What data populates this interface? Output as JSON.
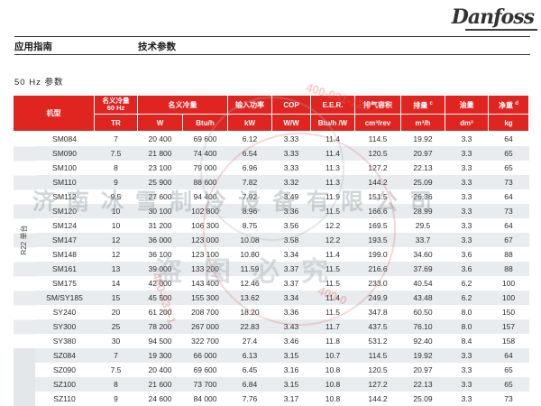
{
  "page": {
    "brand": "Danfoss",
    "nav_left": "应用指南",
    "nav_right": "技术参数",
    "section_title": "50 Hz 参数"
  },
  "table": {
    "group_label": "R22 单台",
    "header": {
      "model": "机型",
      "nominal60_l1": "名义冷量",
      "nominal60_l2": "60 Hz",
      "nominal": "名义冷量",
      "input_power": "输入功率",
      "cop": "COP",
      "eer": "E.E.R.",
      "displacement_vol": "排气容积",
      "displacement": "排量",
      "displacement_sup": "c",
      "oil": "油量",
      "net_weight": "净重",
      "net_weight_sup": "d"
    },
    "units": {
      "tr": "TR",
      "w": "W",
      "btuh": "Btu/h",
      "kw": "kW",
      "ww": "W/W",
      "btuhw": "Btu/h /W",
      "cm3rev": "cm³/rev",
      "m3h": "m³/h",
      "dm3": "dm³",
      "kg": "kg"
    },
    "rows": [
      [
        "SM084",
        "7",
        "20 400",
        "69 600",
        "6.12",
        "3.33",
        "11.4",
        "114.5",
        "19.92",
        "3.3",
        "64"
      ],
      [
        "SM090",
        "7.5",
        "21 800",
        "74 400",
        "6.54",
        "3.33",
        "11.4",
        "120.5",
        "20.97",
        "3.3",
        "65"
      ],
      [
        "SM100",
        "8",
        "23 100",
        "79 000",
        "6.96",
        "3.33",
        "11.3",
        "127.2",
        "22.13",
        "3.3",
        "65"
      ],
      [
        "SM110",
        "9",
        "25 900",
        "88 600",
        "7.82",
        "3.32",
        "11.3",
        "144.2",
        "25.09",
        "3.3",
        "73"
      ],
      [
        "SM112",
        "9.5",
        "27 600",
        "94 400",
        "7.92",
        "3.49",
        "11.9",
        "151.5",
        "26.36",
        "3.3",
        "64"
      ],
      [
        "SM120",
        "10",
        "30 100",
        "102 800",
        "8.96",
        "3.36",
        "11.5",
        "166.6",
        "28.99",
        "3.3",
        "73"
      ],
      [
        "SM124",
        "10",
        "31 200",
        "106 300",
        "8.75",
        "3.56",
        "12.2",
        "169.5",
        "29.5",
        "3.3",
        "64"
      ],
      [
        "SM147",
        "12",
        "36 000",
        "123 000",
        "10.08",
        "3.58",
        "12.2",
        "193.5",
        "33.7",
        "3.3",
        "67"
      ],
      [
        "SM148",
        "12",
        "36 100",
        "123 100",
        "10.80",
        "3.34",
        "11.4",
        "199.0",
        "34.60",
        "3.6",
        "88"
      ],
      [
        "SM161",
        "13",
        "39 000",
        "133 200",
        "11.59",
        "3.37",
        "11.5",
        "216.6",
        "37.69",
        "3.6",
        "88"
      ],
      [
        "SM175",
        "14",
        "42 000",
        "143 400",
        "12.46",
        "3.37",
        "11.5",
        "233.0",
        "40.54",
        "6.2",
        "100"
      ],
      [
        "SM/SY185",
        "15",
        "45 500",
        "155 300",
        "13.62",
        "3.34",
        "11.4",
        "249.9",
        "43.48",
        "6.2",
        "100"
      ],
      [
        "SY240",
        "20",
        "61 200",
        "208 700",
        "18.20",
        "3.36",
        "11.5",
        "347.8",
        "60.50",
        "8.0",
        "150"
      ],
      [
        "SY300",
        "25",
        "78 200",
        "267 000",
        "22.83",
        "3.43",
        "11.7",
        "437.5",
        "76.10",
        "8.0",
        "157"
      ],
      [
        "SY380",
        "30",
        "94 500",
        "322 700",
        "27.4",
        "3.46",
        "11.8",
        "531.2",
        "92.40",
        "8.4",
        "158"
      ],
      [
        "SZ084",
        "7",
        "19 300",
        "66 000",
        "6.13",
        "3.15",
        "10.7",
        "114.5",
        "19.92",
        "3.3",
        "64"
      ],
      [
        "SZ090",
        "7.5",
        "20 400",
        "69 600",
        "6.45",
        "3.16",
        "10.8",
        "120.5",
        "20.97",
        "3.3",
        "65"
      ],
      [
        "SZ100",
        "8",
        "21 600",
        "73 700",
        "6.84",
        "3.15",
        "10.8",
        "127.2",
        "22.13",
        "3.3",
        "65"
      ],
      [
        "SZ110",
        "9",
        "24 600",
        "84 000",
        "7.76",
        "3.17",
        "10.8",
        "144.2",
        "25.09",
        "3.3",
        "73"
      ]
    ]
  },
  "watermark": {
    "company": "济南冰雪制冷设备有限公司",
    "notice": "盗图必究",
    "phone": "400-031-128",
    "phone_mid": "400-031-1",
    "phone_short": "400-0"
  }
}
